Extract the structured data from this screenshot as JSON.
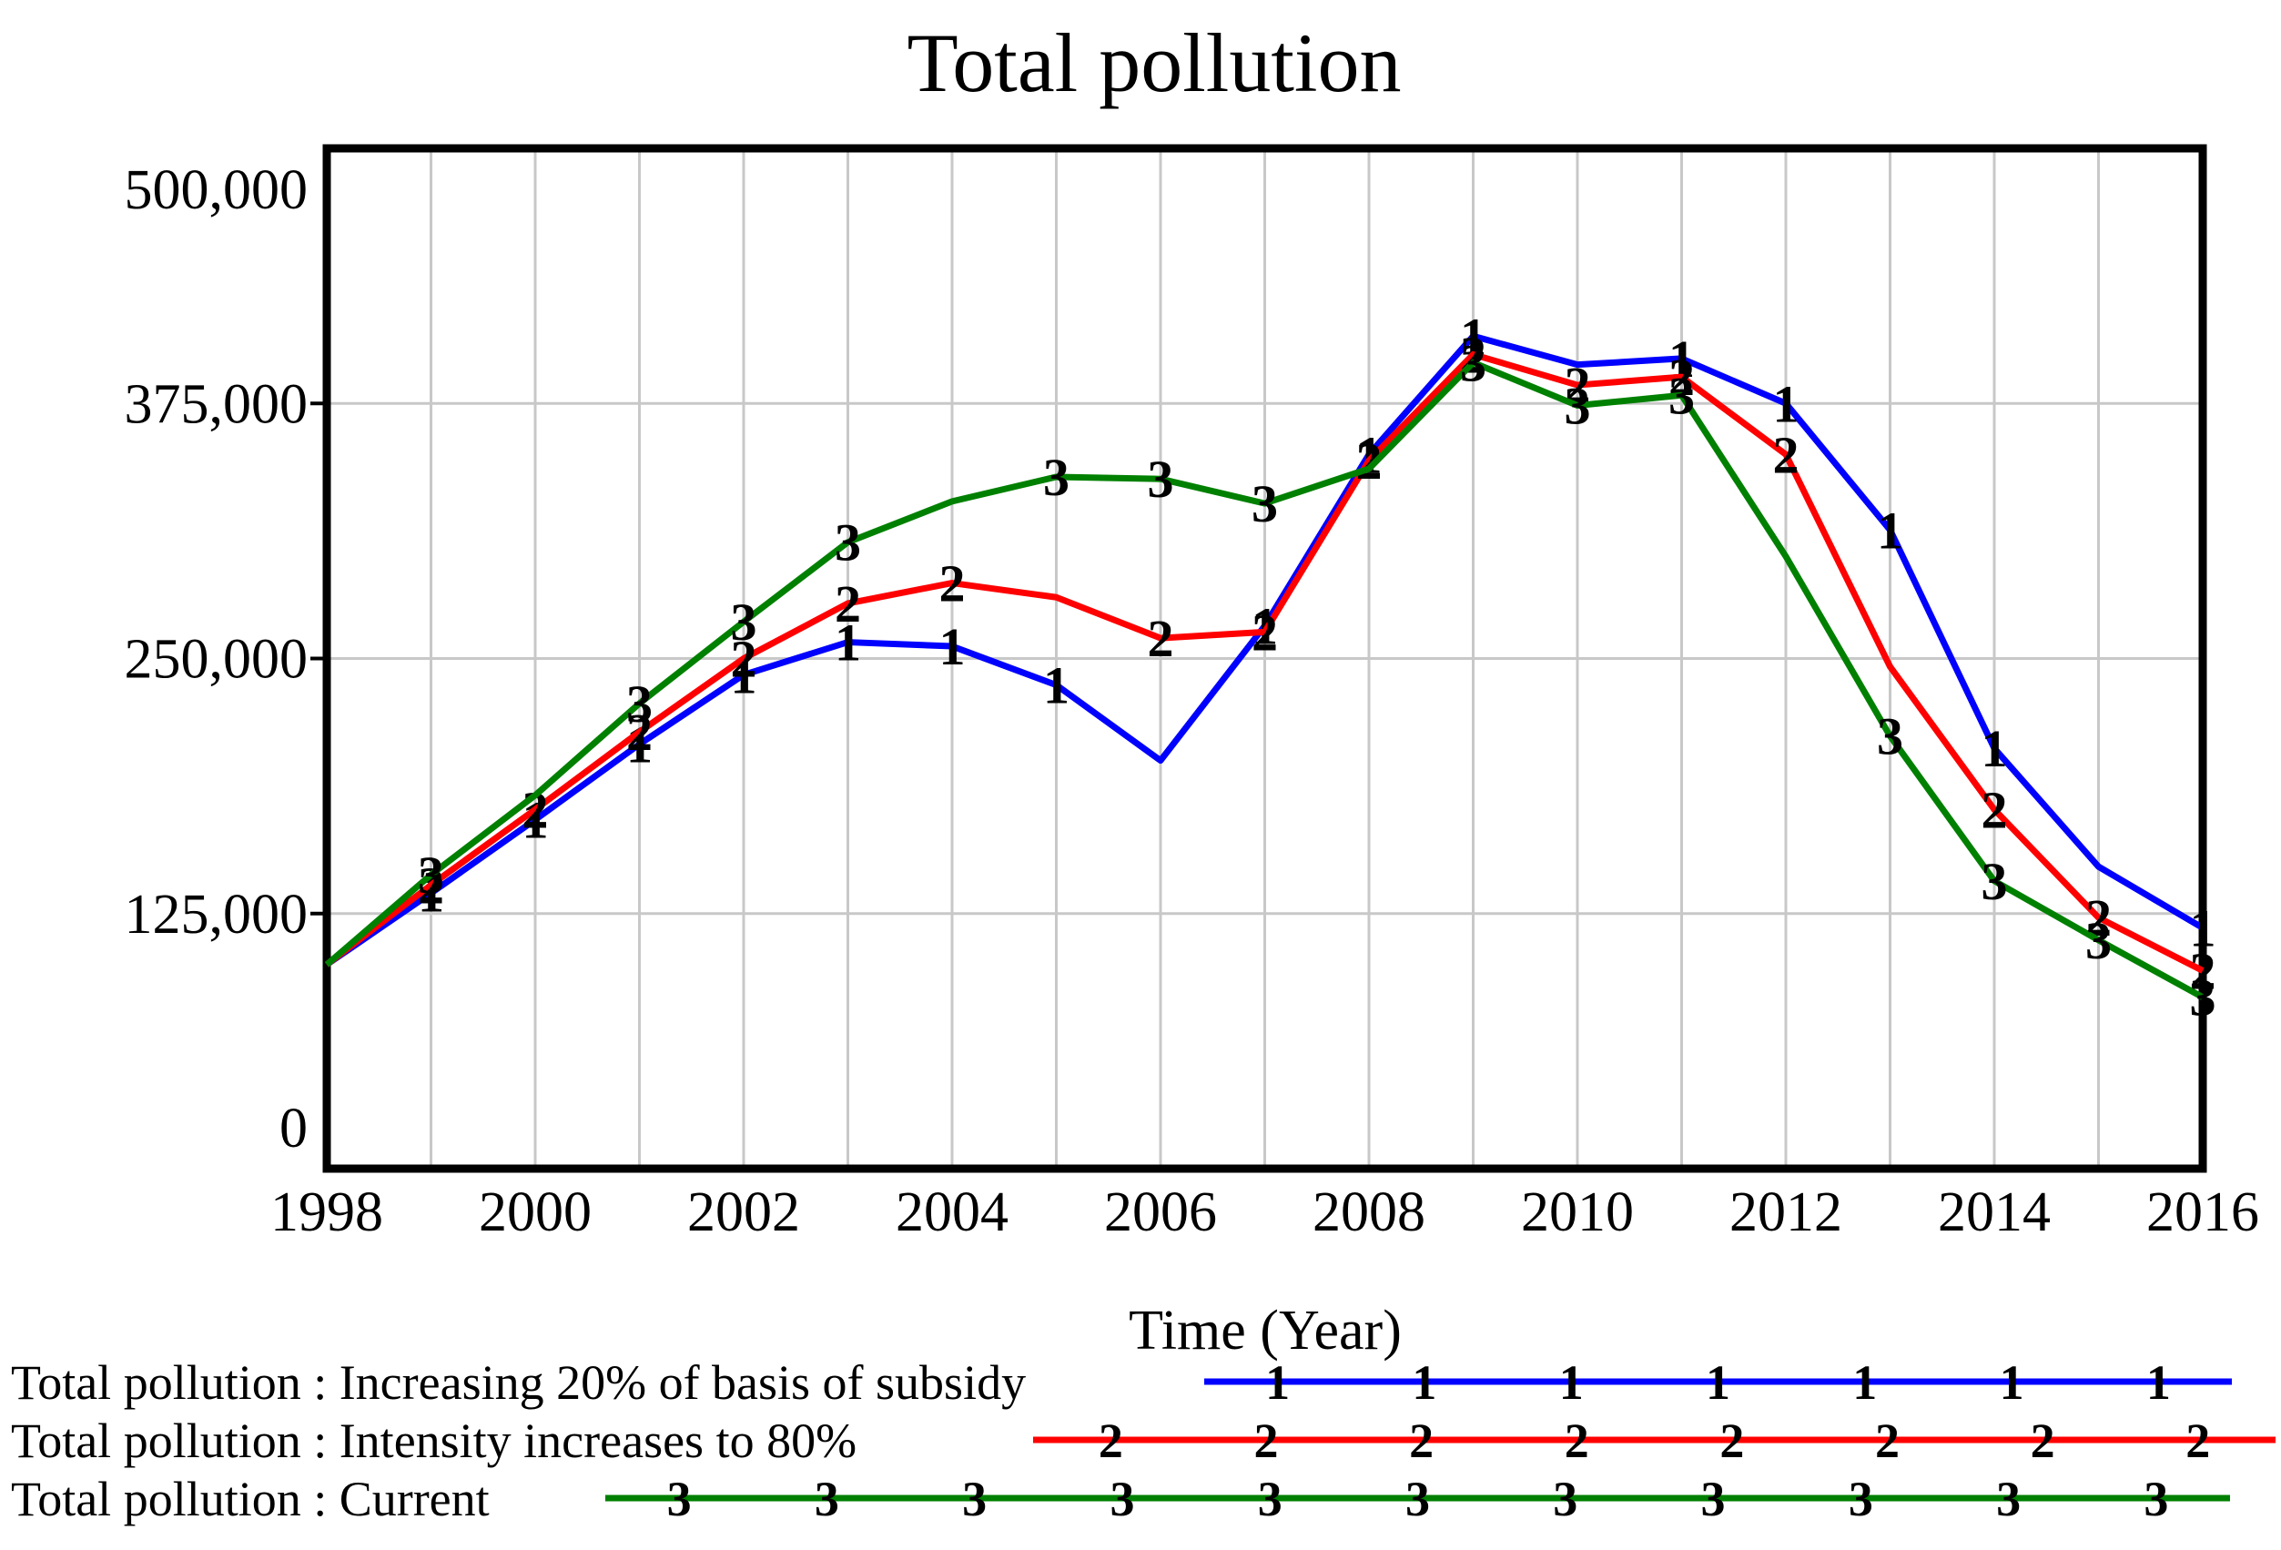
{
  "chart_data": {
    "type": "line",
    "title": "Total pollution",
    "xlabel": "Time (Year)",
    "ylabel": "",
    "x": [
      1998,
      1999,
      2000,
      2001,
      2002,
      2003,
      2004,
      2005,
      2006,
      2007,
      2008,
      2009,
      2010,
      2011,
      2012,
      2013,
      2014,
      2015,
      2016
    ],
    "xlim": [
      1998,
      2016
    ],
    "ylim": [
      0,
      500000
    ],
    "grid": "on",
    "gridline_color": "#c8c8c8",
    "axis_color": "#000000",
    "legend_position": "bottom-left",
    "yticks": {
      "values": [
        0,
        125000,
        250000,
        375000,
        500000
      ],
      "labels": [
        "0",
        "125,000",
        "250,000",
        "375,000",
        "500,000"
      ]
    },
    "xticks": {
      "values": [
        1998,
        2000,
        2002,
        2004,
        2006,
        2008,
        2010,
        2012,
        2014,
        2016
      ],
      "labels": [
        "1998",
        "2000",
        "2002",
        "2004",
        "2006",
        "2008",
        "2010",
        "2012",
        "2014",
        "2016"
      ]
    },
    "series": [
      {
        "name": "Total pollution : Increasing 20% of basis of subsidy",
        "marker": "1",
        "color": "#0000ff",
        "values": [
          100000,
          135000,
          171000,
          208000,
          242000,
          258000,
          256000,
          237000,
          200000,
          266000,
          350000,
          408000,
          394000,
          397000,
          375000,
          313000,
          206000,
          148000,
          118000
        ],
        "marker_years": [
          1999,
          2000,
          2001,
          2002,
          2003,
          2004,
          2005,
          2007,
          2008,
          2009,
          2011,
          2012,
          2013,
          2014,
          2016
        ]
      },
      {
        "name": "Total pollution : Intensity increases to 80%",
        "marker": "2",
        "color": "#ff0000",
        "values": [
          100000,
          139000,
          176000,
          214000,
          250000,
          277000,
          287000,
          280000,
          260000,
          263000,
          347000,
          399000,
          384000,
          388000,
          350000,
          246000,
          176000,
          123000,
          97000
        ],
        "marker_years": [
          1999,
          2000,
          2001,
          2002,
          2003,
          2004,
          2006,
          2007,
          2008,
          2009,
          2010,
          2011,
          2012,
          2014,
          2015,
          2016
        ]
      },
      {
        "name": "Total pollution : Current",
        "marker": "3",
        "color": "#008000",
        "values": [
          100000,
          144000,
          183000,
          228000,
          268000,
          307000,
          327000,
          339000,
          338000,
          326000,
          343000,
          395000,
          374000,
          379000,
          300000,
          212000,
          141000,
          112000,
          84000
        ],
        "marker_years": [
          1999,
          2001,
          2002,
          2003,
          2005,
          2006,
          2007,
          2009,
          2010,
          2011,
          2013,
          2014,
          2015,
          2016
        ]
      }
    ]
  }
}
